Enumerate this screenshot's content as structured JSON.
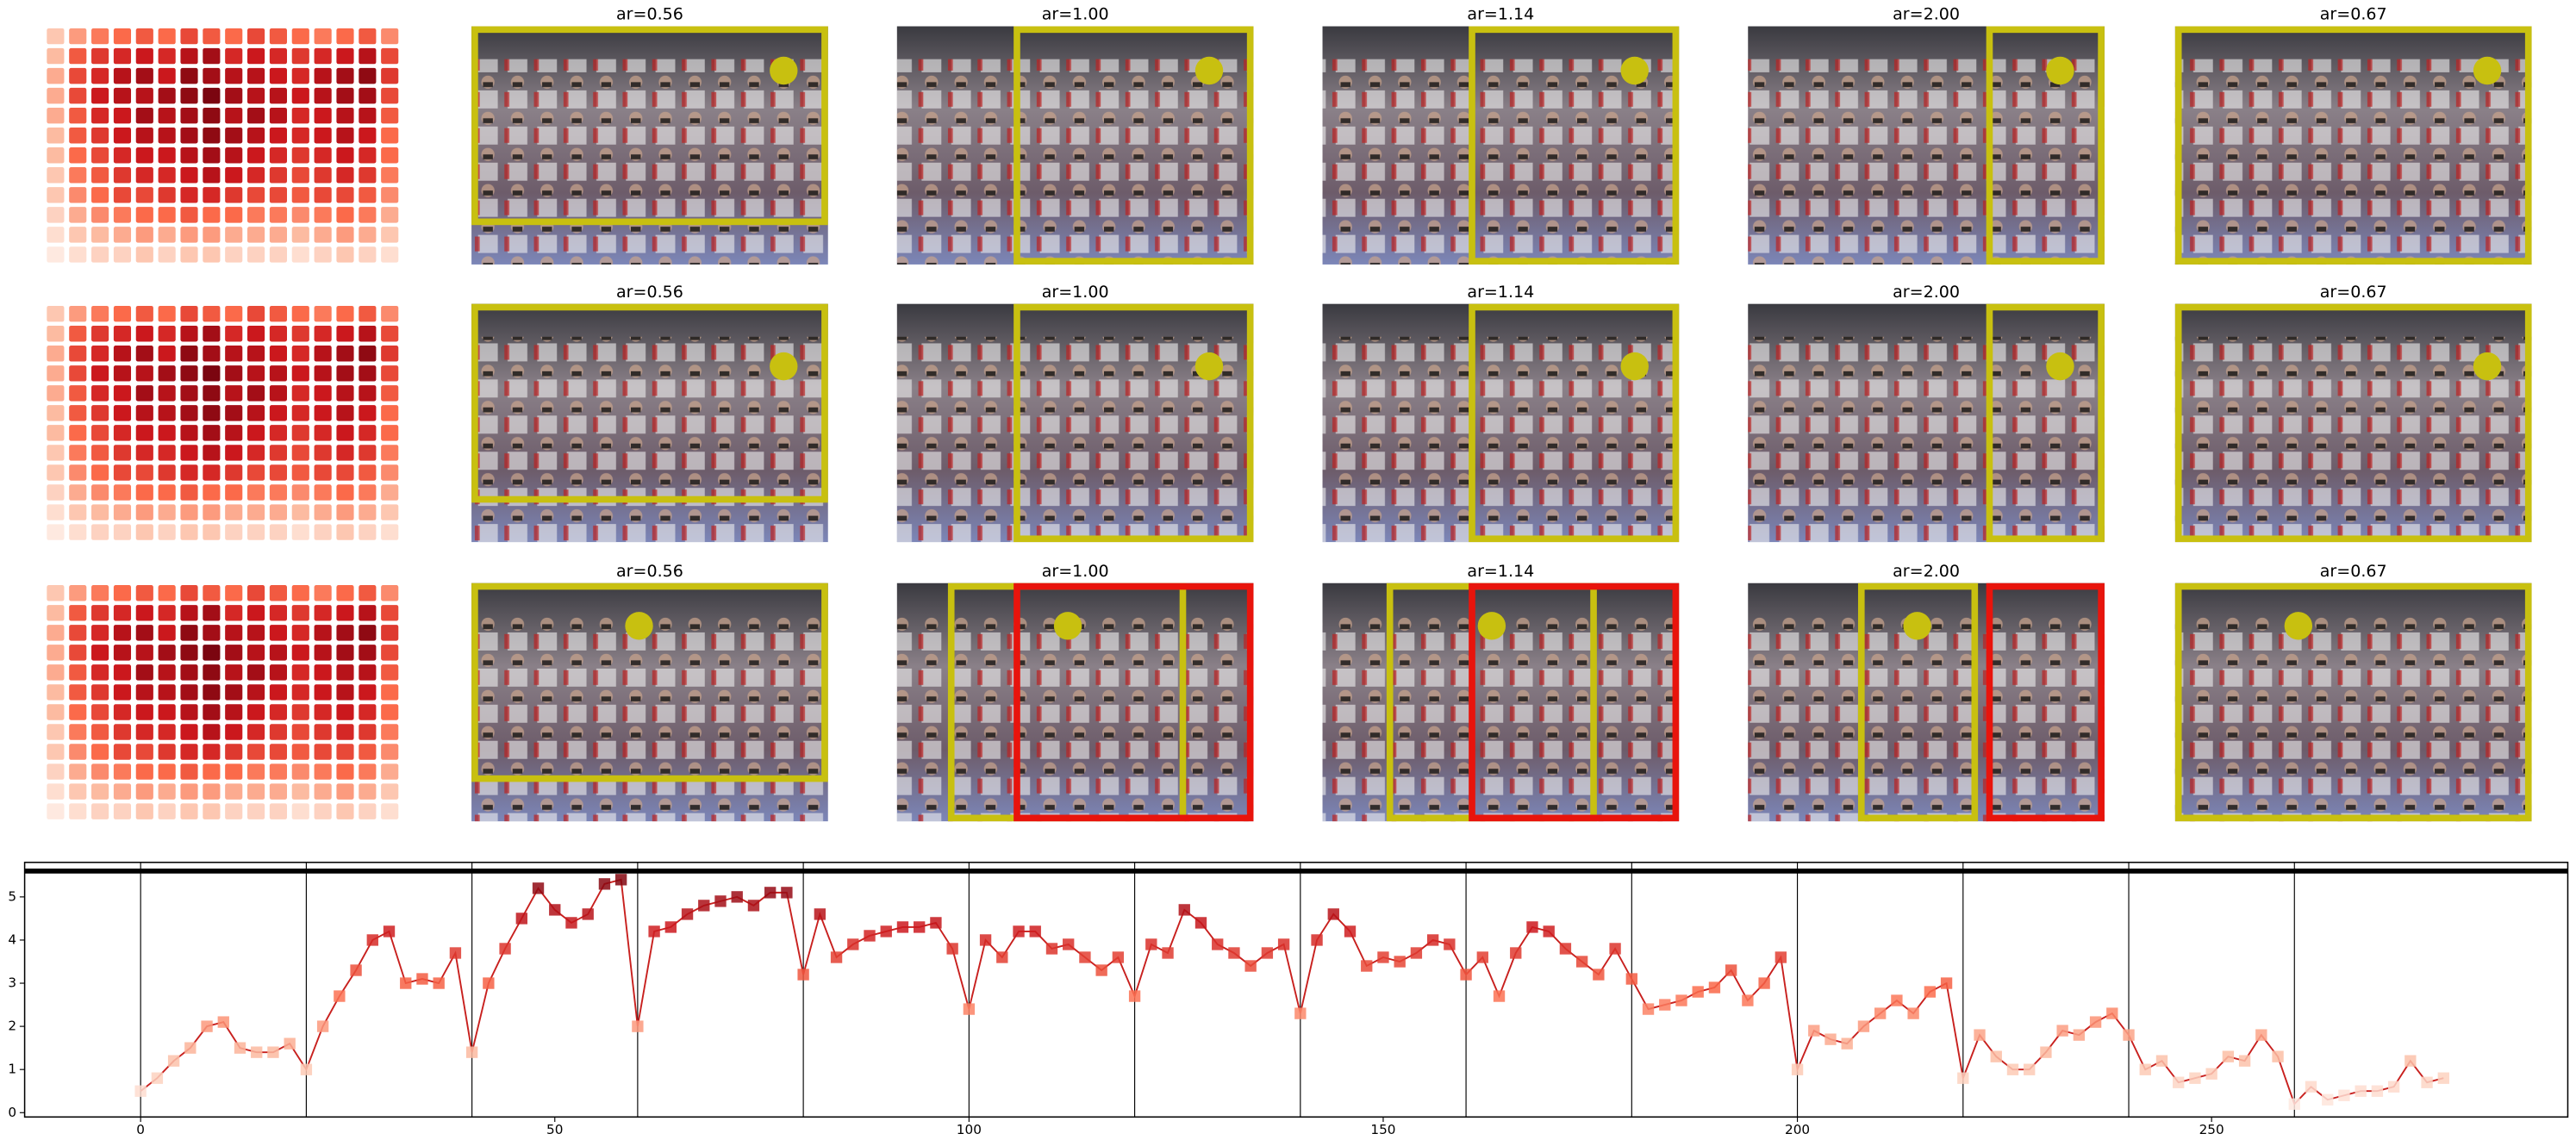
{
  "rows": [
    {
      "titles": [
        "ar=0.56",
        "ar=1.00",
        "ar=1.14",
        "ar=2.00",
        "ar=0.67"
      ]
    },
    {
      "titles": [
        "ar=0.56",
        "ar=1.00",
        "ar=1.14",
        "ar=2.00",
        "ar=0.67"
      ]
    },
    {
      "titles": [
        "ar=0.56",
        "ar=1.00",
        "ar=1.14",
        "ar=2.00",
        "ar=0.67"
      ]
    }
  ],
  "colormap": [
    "#fff5f0",
    "#fcbba1",
    "#fb6a4a",
    "#cb181d",
    "#67000d"
  ],
  "heatmap": {
    "values": [
      [
        0.2,
        0.35,
        0.45,
        0.5,
        0.55,
        0.5,
        0.6,
        0.55,
        0.5,
        0.6,
        0.55,
        0.5,
        0.45,
        0.5,
        0.55,
        0.4
      ],
      [
        0.25,
        0.55,
        0.65,
        0.7,
        0.75,
        0.7,
        0.8,
        0.85,
        0.7,
        0.75,
        0.7,
        0.65,
        0.7,
        0.75,
        0.8,
        0.6
      ],
      [
        0.3,
        0.6,
        0.7,
        0.8,
        0.85,
        0.75,
        0.9,
        0.85,
        0.8,
        0.8,
        0.75,
        0.7,
        0.8,
        0.85,
        0.9,
        0.65
      ],
      [
        0.3,
        0.6,
        0.75,
        0.8,
        0.8,
        0.85,
        0.9,
        0.95,
        0.85,
        0.8,
        0.8,
        0.75,
        0.8,
        0.85,
        0.85,
        0.6
      ],
      [
        0.3,
        0.55,
        0.7,
        0.75,
        0.85,
        0.8,
        0.85,
        0.9,
        0.8,
        0.85,
        0.8,
        0.7,
        0.75,
        0.8,
        0.8,
        0.55
      ],
      [
        0.25,
        0.55,
        0.65,
        0.75,
        0.8,
        0.8,
        0.85,
        0.9,
        0.85,
        0.8,
        0.75,
        0.7,
        0.75,
        0.8,
        0.75,
        0.5
      ],
      [
        0.25,
        0.5,
        0.6,
        0.7,
        0.75,
        0.75,
        0.8,
        0.85,
        0.8,
        0.75,
        0.7,
        0.65,
        0.7,
        0.75,
        0.7,
        0.5
      ],
      [
        0.2,
        0.45,
        0.55,
        0.65,
        0.7,
        0.7,
        0.75,
        0.8,
        0.75,
        0.7,
        0.65,
        0.6,
        0.65,
        0.7,
        0.65,
        0.45
      ],
      [
        0.2,
        0.4,
        0.5,
        0.6,
        0.6,
        0.65,
        0.7,
        0.7,
        0.65,
        0.6,
        0.6,
        0.55,
        0.6,
        0.6,
        0.55,
        0.4
      ],
      [
        0.15,
        0.3,
        0.4,
        0.45,
        0.5,
        0.5,
        0.55,
        0.5,
        0.5,
        0.45,
        0.45,
        0.4,
        0.45,
        0.5,
        0.45,
        0.3
      ],
      [
        0.1,
        0.2,
        0.25,
        0.3,
        0.35,
        0.3,
        0.35,
        0.35,
        0.3,
        0.3,
        0.3,
        0.25,
        0.3,
        0.35,
        0.3,
        0.2
      ],
      [
        0.05,
        0.1,
        0.15,
        0.15,
        0.2,
        0.15,
        0.2,
        0.2,
        0.15,
        0.15,
        0.15,
        0.1,
        0.15,
        0.2,
        0.15,
        0.1
      ]
    ]
  },
  "chart_data": {
    "type": "line",
    "x": [
      0,
      2,
      4,
      6,
      8,
      10,
      12,
      14,
      16,
      18,
      20,
      22,
      24,
      26,
      28,
      30,
      32,
      34,
      36,
      38,
      40,
      42,
      44,
      46,
      48,
      50,
      52,
      54,
      56,
      58,
      60,
      62,
      64,
      66,
      68,
      70,
      72,
      74,
      76,
      78,
      80,
      82,
      84,
      86,
      88,
      90,
      92,
      94,
      96,
      98,
      100,
      102,
      104,
      106,
      108,
      110,
      112,
      114,
      116,
      118,
      120,
      122,
      124,
      126,
      128,
      130,
      132,
      134,
      136,
      138,
      140,
      142,
      144,
      146,
      148,
      150,
      152,
      154,
      156,
      158,
      160,
      162,
      164,
      166,
      168,
      170,
      172,
      174,
      176,
      178,
      180,
      182,
      184,
      186,
      188,
      190,
      192,
      194,
      196,
      198,
      200,
      202,
      204,
      206,
      208,
      210,
      212,
      214,
      216,
      218,
      220,
      222,
      224,
      226,
      228,
      230,
      232,
      234,
      236,
      238,
      240,
      242,
      244,
      246,
      248,
      250,
      252,
      254,
      256,
      258,
      260,
      262,
      264,
      266,
      268,
      270,
      272,
      274,
      276,
      278
    ],
    "series": [
      {
        "color": "#c8201e",
        "values": [
          0.5,
          0.8,
          1.2,
          1.5,
          2.0,
          2.1,
          1.5,
          1.4,
          1.4,
          1.6,
          1.0,
          2.0,
          2.7,
          3.3,
          4.0,
          4.2,
          3.0,
          3.1,
          3.0,
          3.7,
          1.4,
          3.0,
          3.8,
          4.5,
          5.2,
          4.7,
          4.4,
          4.6,
          5.3,
          5.4,
          2.0,
          4.2,
          4.3,
          4.6,
          4.8,
          4.9,
          5.0,
          4.8,
          5.1,
          5.1,
          3.2,
          4.6,
          3.6,
          3.9,
          4.1,
          4.2,
          4.3,
          4.3,
          4.4,
          3.8,
          2.4,
          4.0,
          3.6,
          4.2,
          4.2,
          3.8,
          3.9,
          3.6,
          3.3,
          3.6,
          2.7,
          3.9,
          3.7,
          4.7,
          4.4,
          3.9,
          3.7,
          3.4,
          3.7,
          3.9,
          2.3,
          4.0,
          4.6,
          4.2,
          3.4,
          3.6,
          3.5,
          3.7,
          4.0,
          3.9,
          3.2,
          3.6,
          2.7,
          3.7,
          4.3,
          4.2,
          3.8,
          3.5,
          3.2,
          3.8,
          3.1,
          2.4,
          2.5,
          2.6,
          2.8,
          2.9,
          3.3,
          2.6,
          3.0,
          3.6,
          1.0,
          1.9,
          1.7,
          1.6,
          2.0,
          2.3,
          2.6,
          2.3,
          2.8,
          3.0,
          0.8,
          1.8,
          1.3,
          1.0,
          1.0,
          1.4,
          1.9,
          1.8,
          2.1,
          2.3,
          1.8,
          1.0,
          1.2,
          0.7,
          0.8,
          0.9,
          1.3,
          1.2,
          1.8,
          1.3,
          0.2,
          0.6,
          0.3,
          0.4,
          0.5,
          0.5,
          0.6,
          1.2,
          0.7,
          0.8
        ]
      }
    ],
    "xlim": [
      -14,
      293
    ],
    "ylim": [
      -0.1,
      5.8
    ],
    "xticks": [
      0,
      50,
      100,
      150,
      200,
      250
    ],
    "yticks": [
      0,
      1,
      2,
      3,
      4,
      5
    ],
    "vlines": [
      0,
      20,
      40,
      60,
      80,
      100,
      120,
      140,
      160,
      180,
      200,
      220,
      240,
      260
    ],
    "hline": 5.6
  }
}
